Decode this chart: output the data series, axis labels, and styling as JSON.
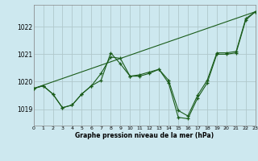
{
  "title": "Graphe pression niveau de la mer (hPa)",
  "bg_color": "#cde8ef",
  "grid_color": "#b0c8cc",
  "line_color": "#1a5c1a",
  "xmin": 0,
  "xmax": 23,
  "ymin": 1018.4,
  "ymax": 1022.8,
  "yticks": [
    1019,
    1020,
    1021,
    1022
  ],
  "xticks": [
    0,
    1,
    2,
    3,
    4,
    5,
    6,
    7,
    8,
    9,
    10,
    11,
    12,
    13,
    14,
    15,
    16,
    17,
    18,
    19,
    20,
    21,
    22,
    23
  ],
  "series1_x": [
    0,
    1,
    2,
    3,
    4,
    5,
    6,
    7,
    8,
    9,
    10,
    11,
    12,
    13,
    14,
    15,
    16,
    17,
    18,
    19,
    20,
    21,
    22,
    23
  ],
  "series1_y": [
    1019.75,
    1019.85,
    1019.55,
    1019.05,
    1019.15,
    1019.55,
    1019.85,
    1020.3,
    1020.9,
    1020.85,
    1020.2,
    1020.2,
    1020.3,
    1020.45,
    1019.95,
    1018.7,
    1018.65,
    1019.4,
    1019.95,
    1021.0,
    1021.0,
    1021.05,
    1022.25,
    1022.55
  ],
  "series2_x": [
    0,
    1,
    2,
    3,
    4,
    5,
    6,
    7,
    8,
    9,
    10,
    11,
    12,
    13,
    14,
    15,
    16,
    17,
    18,
    19,
    20,
    21,
    22,
    23
  ],
  "series2_y": [
    1019.75,
    1019.85,
    1019.55,
    1019.05,
    1019.15,
    1019.55,
    1019.85,
    1020.05,
    1021.05,
    1020.65,
    1020.2,
    1020.25,
    1020.35,
    1020.45,
    1020.05,
    1018.95,
    1018.75,
    1019.5,
    1020.05,
    1021.05,
    1021.05,
    1021.1,
    1022.3,
    1022.55
  ],
  "series3_x": [
    0,
    23
  ],
  "series3_y": [
    1019.75,
    1022.55
  ]
}
